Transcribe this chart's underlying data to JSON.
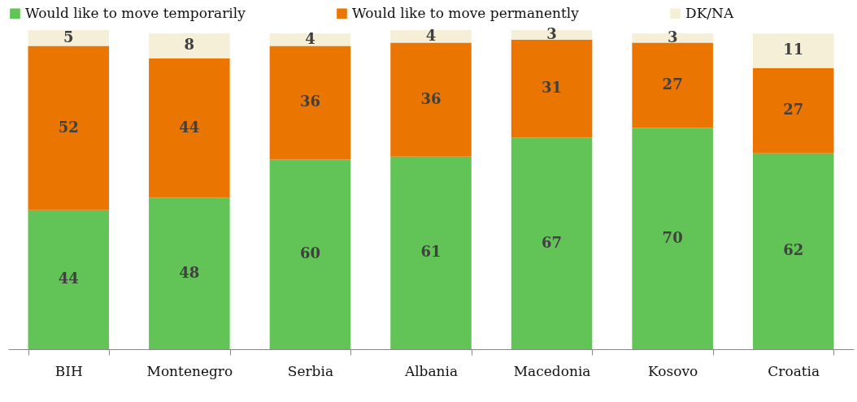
{
  "chart_data": {
    "type": "bar",
    "stacked": true,
    "data_labels": true,
    "legend": "top",
    "grid": false,
    "categories": [
      "BIH",
      "Montenegro",
      "Serbia",
      "Albania",
      "Macedonia",
      "Kosovo",
      "Croatia"
    ],
    "series": [
      {
        "name": "Would like to move temporarily",
        "color": "#62c456",
        "values": [
          44,
          48,
          60,
          61,
          67,
          70,
          62
        ]
      },
      {
        "name": "Would like to move permanently",
        "color": "#ea7500",
        "values": [
          52,
          44,
          36,
          36,
          31,
          27,
          27
        ]
      },
      {
        "name": "DK/NA",
        "color": "#f5efd8",
        "values": [
          5,
          8,
          4,
          4,
          3,
          3,
          11
        ]
      }
    ]
  }
}
